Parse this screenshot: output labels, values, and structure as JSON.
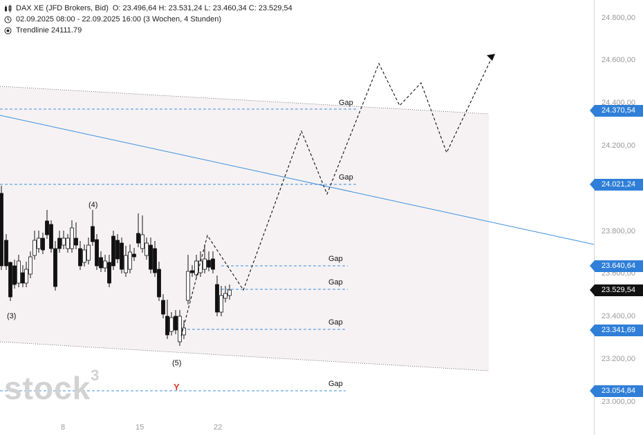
{
  "header": {
    "instrument": "DAX XE (JFD Brokers, Bid)",
    "ohlc": "O: 23.496,64  H: 23.531,24  L: 23.460,34  C: 23.529,54",
    "range": "02.09.2025 08:00 - 22.09.2025 16:00  (3 Wochen, 4 Stunden)",
    "trendline": "Trendlinie  24111.79"
  },
  "y_axis": {
    "ticks": [
      "24.800,00",
      "24.600,00",
      "24.400,00",
      "24.200,00",
      "23.800,00",
      "23.600,00",
      "23.400,00",
      "23.200,00",
      "23.000,00"
    ],
    "tick_values": [
      24800,
      24600,
      24400,
      24200,
      23800,
      23600,
      23400,
      23200,
      23000
    ]
  },
  "x_axis": {
    "ticks": [
      "8",
      "15",
      "22"
    ]
  },
  "price_tags": [
    {
      "label": "24.370,54",
      "value": 24370.54,
      "color": "#2f7fd8"
    },
    {
      "label": "24.021,24",
      "value": 24021.24,
      "color": "#2f7fd8"
    },
    {
      "label": "23.640,64",
      "value": 23640.64,
      "color": "#2f7fd8"
    },
    {
      "label": "23.529,54",
      "value": 23529.54,
      "color": "#111111"
    },
    {
      "label": "23.341,69",
      "value": 23341.69,
      "color": "#2f7fd8"
    },
    {
      "label": "23.054,84",
      "value": 23054.84,
      "color": "#2f7fd8"
    }
  ],
  "gap_labels": [
    "Gap",
    "Gap",
    "Gap",
    "Gap",
    "Gap",
    "Gap"
  ],
  "wave_labels": [
    "(3)",
    "(4)",
    "(5)"
  ],
  "y_marker": "Y",
  "logo": {
    "text": "stock",
    "sup": "3"
  },
  "colors": {
    "trendline": "#3b8fdc",
    "gap_line": "#3b8fdc",
    "channel_fill": "#f6f2f4",
    "candle_up": "#ffffff",
    "candle_down": "#111111"
  }
}
